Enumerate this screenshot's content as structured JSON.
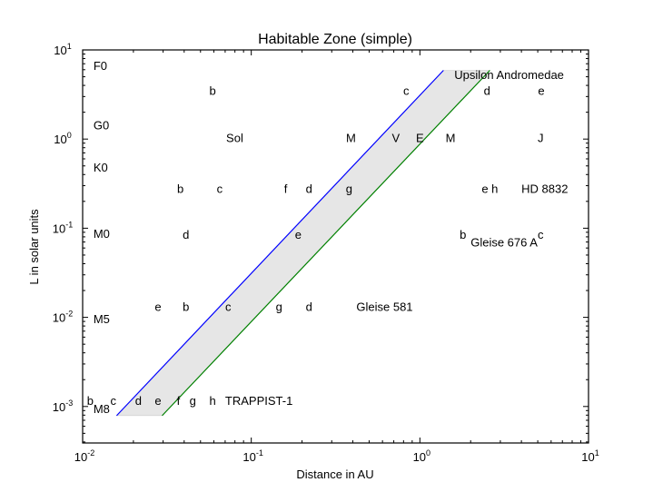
{
  "chart_data": {
    "type": "scatter",
    "title": "Habitable Zone (simple)",
    "xlabel": "Distance in AU",
    "ylabel": "L in solar units",
    "xscale": "log",
    "yscale": "log",
    "xlim": [
      0.01,
      10
    ],
    "ylim": [
      0.0004,
      10
    ],
    "x_ticks": [
      {
        "value": 0.01,
        "base": "10",
        "exp": "-2"
      },
      {
        "value": 0.1,
        "base": "10",
        "exp": "-1"
      },
      {
        "value": 1,
        "base": "10",
        "exp": "0"
      },
      {
        "value": 10,
        "base": "10",
        "exp": "1"
      }
    ],
    "y_ticks": [
      {
        "value": 10,
        "base": "10",
        "exp": "1"
      },
      {
        "value": 1,
        "base": "10",
        "exp": "0"
      },
      {
        "value": 0.1,
        "base": "10",
        "exp": "-1"
      },
      {
        "value": 0.01,
        "base": "10",
        "exp": "-2"
      },
      {
        "value": 0.001,
        "base": "10",
        "exp": "-3"
      }
    ],
    "grid": false,
    "habitable_zone": {
      "fill_color": "#e6e6e6",
      "inner_edge": {
        "color": "#0000ff",
        "points": [
          [
            0.0159,
            0.00079
          ],
          [
            1.38,
            5.9
          ]
        ]
      },
      "outer_edge": {
        "color": "#008000",
        "points": [
          [
            0.0296,
            0.00079
          ],
          [
            2.6,
            5.9
          ]
        ]
      }
    },
    "spectral_types": [
      {
        "label": "F0",
        "x": 0.0113,
        "y": 6.5
      },
      {
        "label": "G0",
        "x": 0.0113,
        "y": 1.4
      },
      {
        "label": "K0",
        "x": 0.0113,
        "y": 0.47
      },
      {
        "label": "M0",
        "x": 0.0113,
        "y": 0.085
      },
      {
        "label": "M5",
        "x": 0.0113,
        "y": 0.0093
      },
      {
        "label": "M8",
        "x": 0.0113,
        "y": 0.00092
      }
    ],
    "systems": [
      {
        "name": "Upsilon Andromedae",
        "name_pos": {
          "x": 1.6,
          "y": 5.1
        },
        "planets": [
          {
            "label": "b",
            "x": 0.059,
            "y": 3.4
          },
          {
            "label": "c",
            "x": 0.83,
            "y": 3.4
          },
          {
            "label": "d",
            "x": 2.5,
            "y": 3.4
          },
          {
            "label": "e",
            "x": 5.25,
            "y": 3.4
          }
        ]
      },
      {
        "name": "Sol",
        "name_pos": {
          "x": 0.071,
          "y": 1.0
        },
        "planets": [
          {
            "label": "M",
            "x": 0.39,
            "y": 1.0
          },
          {
            "label": "V",
            "x": 0.72,
            "y": 1.0
          },
          {
            "label": "E",
            "x": 1.0,
            "y": 1.0
          },
          {
            "label": "M",
            "x": 1.52,
            "y": 1.0
          },
          {
            "label": "J",
            "x": 5.2,
            "y": 1.0
          }
        ]
      },
      {
        "name": "HD 8832",
        "name_pos": {
          "x": 4.0,
          "y": 0.27
        },
        "planets": [
          {
            "label": "b",
            "x": 0.038,
            "y": 0.27
          },
          {
            "label": "c",
            "x": 0.065,
            "y": 0.27
          },
          {
            "label": "f",
            "x": 0.16,
            "y": 0.27
          },
          {
            "label": "d",
            "x": 0.22,
            "y": 0.27
          },
          {
            "label": "g",
            "x": 0.38,
            "y": 0.27
          },
          {
            "label": "e h",
            "x": 2.6,
            "y": 0.27
          }
        ]
      },
      {
        "name": "Gleise 676 A",
        "name_pos": {
          "x": 2.0,
          "y": 0.068
        },
        "planets": [
          {
            "label": "d",
            "x": 0.041,
            "y": 0.083
          },
          {
            "label": "e",
            "x": 0.19,
            "y": 0.083
          },
          {
            "label": "b",
            "x": 1.8,
            "y": 0.083
          },
          {
            "label": "c",
            "x": 5.2,
            "y": 0.083
          }
        ]
      },
      {
        "name": "Gleise 581",
        "name_pos": {
          "x": 0.42,
          "y": 0.0128
        },
        "planets": [
          {
            "label": "e",
            "x": 0.028,
            "y": 0.0128
          },
          {
            "label": "b",
            "x": 0.041,
            "y": 0.0128
          },
          {
            "label": "c",
            "x": 0.073,
            "y": 0.0128
          },
          {
            "label": "g",
            "x": 0.146,
            "y": 0.0128
          },
          {
            "label": "d",
            "x": 0.22,
            "y": 0.0128
          }
        ]
      },
      {
        "name": "TRAPPIST-1",
        "name_pos": {
          "x": 0.07,
          "y": 0.00113
        },
        "planets": [
          {
            "label": "b",
            "x": 0.0111,
            "y": 0.00113
          },
          {
            "label": "c",
            "x": 0.0152,
            "y": 0.00113
          },
          {
            "label": "d",
            "x": 0.0214,
            "y": 0.00113
          },
          {
            "label": "e",
            "x": 0.028,
            "y": 0.00113
          },
          {
            "label": "f",
            "x": 0.037,
            "y": 0.00113
          },
          {
            "label": "g",
            "x": 0.045,
            "y": 0.00113
          },
          {
            "label": "h",
            "x": 0.059,
            "y": 0.00113
          }
        ]
      }
    ]
  }
}
